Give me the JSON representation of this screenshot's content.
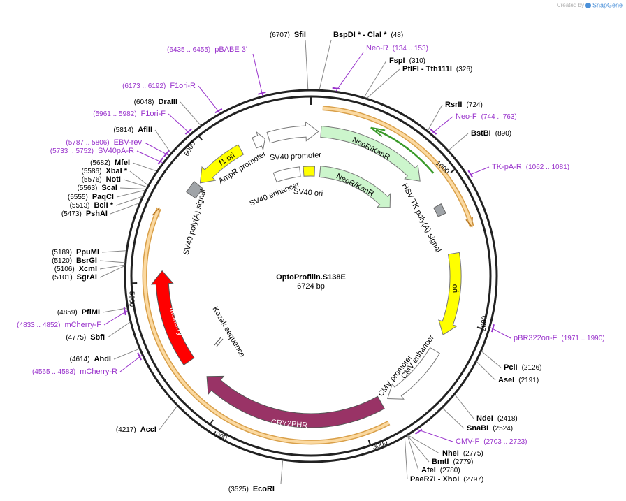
{
  "header": {
    "credit": "Created by",
    "brand": "SnapGene"
  },
  "map": {
    "name": "OptoProfilin.S138E",
    "length": "6724 bp"
  },
  "sites": [
    {
      "name": "SfiI",
      "position": "(6707)"
    },
    {
      "name": "BspDI * - ClaI *",
      "position": "(48)"
    },
    {
      "name": "FspI",
      "position": "(310)"
    },
    {
      "name": "PflFI - Tth111I",
      "position": "(326)"
    },
    {
      "name": "RsrII",
      "position": "(724)"
    },
    {
      "name": "BstBI",
      "position": "(890)"
    },
    {
      "name": "PciI",
      "position": "(2126)"
    },
    {
      "name": "AseI",
      "position": "(2191)"
    },
    {
      "name": "NdeI",
      "position": "(2418)"
    },
    {
      "name": "SnaBI",
      "position": "(2524)"
    },
    {
      "name": "NheI",
      "position": "(2775)"
    },
    {
      "name": "BmtI",
      "position": "(2779)"
    },
    {
      "name": "AfeI",
      "position": "(2780)"
    },
    {
      "name": "PaeR7I - XhoI",
      "position": "(2797)"
    },
    {
      "name": "EcoRI",
      "position": "(3525)"
    },
    {
      "name": "AccI",
      "position": "(4217)"
    },
    {
      "name": "AhdI",
      "position": "(4614)"
    },
    {
      "name": "SbfI",
      "position": "(4775)"
    },
    {
      "name": "PflMI",
      "position": "(4859)"
    },
    {
      "name": "SgrAI",
      "position": "(5101)"
    },
    {
      "name": "XcmI",
      "position": "(5106)"
    },
    {
      "name": "BsrGI",
      "position": "(5120)"
    },
    {
      "name": "PpuMI",
      "position": "(5189)"
    },
    {
      "name": "PshAI",
      "position": "(5473)"
    },
    {
      "name": "BclI *",
      "position": "(5513)"
    },
    {
      "name": "PaqCI",
      "position": "(5555)"
    },
    {
      "name": "ScaI",
      "position": "(5563)"
    },
    {
      "name": "NotI",
      "position": "(5576)"
    },
    {
      "name": "XbaI *",
      "position": "(5586)"
    },
    {
      "name": "MfeI",
      "position": "(5682)"
    },
    {
      "name": "AflII",
      "position": "(5814)"
    },
    {
      "name": "DraIII",
      "position": "(6048)"
    }
  ],
  "primers": [
    {
      "name": "pBABE 3'",
      "range": "(6435 .. 6455)"
    },
    {
      "name": "F1ori-R",
      "range": "(6173 .. 6192)"
    },
    {
      "name": "F1ori-F",
      "range": "(5961 .. 5982)"
    },
    {
      "name": "EBV-rev",
      "range": "(5787 .. 5806)"
    },
    {
      "name": "SV40pA-R",
      "range": "(5733 .. 5752)"
    },
    {
      "name": "mCherry-F",
      "range": "(4833 .. 4852)"
    },
    {
      "name": "mCherry-R",
      "range": "(4565 .. 4583)"
    },
    {
      "name": "Neo-R",
      "range": "(134 .. 153)"
    },
    {
      "name": "Neo-F",
      "range": "(744 .. 763)"
    },
    {
      "name": "TK-pA-R",
      "range": "(1062 .. 1081)"
    },
    {
      "name": "pBR322ori-F",
      "range": "(1971 .. 1990)"
    },
    {
      "name": "CMV-F",
      "range": "(2703 .. 2723)"
    }
  ],
  "features": [
    {
      "label": "NeoR/KanR"
    },
    {
      "label": "NeoR/KanR"
    },
    {
      "label": "SV40 promoter"
    },
    {
      "label": "AmpR promoter"
    },
    {
      "label": "f1 ori"
    },
    {
      "label": "SV40 poly(A) signal"
    },
    {
      "label": "SV40 enhancer"
    },
    {
      "label": "SV40 ori"
    },
    {
      "label": "HSV TK poly(A) signal"
    },
    {
      "label": "ori"
    },
    {
      "label": "CMV enhancer"
    },
    {
      "label": "CMV promoter"
    },
    {
      "label": "CRY2PHR"
    },
    {
      "label": "mCherry"
    },
    {
      "label": "Kozak sequence"
    }
  ],
  "ruler": [
    "1000",
    "2000",
    "3000",
    "4000",
    "5000",
    "6000"
  ]
}
